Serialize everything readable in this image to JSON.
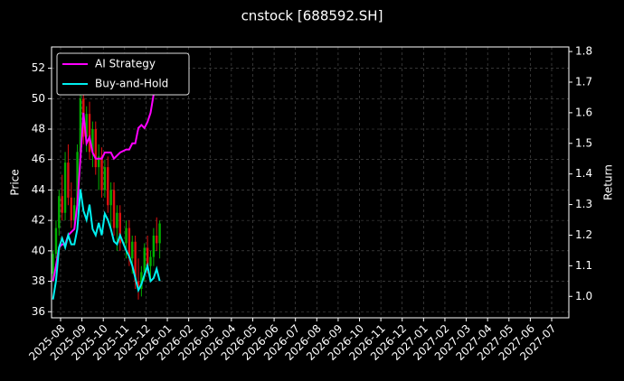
{
  "chart_data": {
    "type": "candlestick",
    "title": "cnstock [688592.SH]",
    "ylabel": "Price",
    "y2label": "Return",
    "x": [
      "2025-07",
      "2025-07",
      "2025-07",
      "2025-08",
      "2025-08",
      "2025-08",
      "2025-08",
      "2025-08",
      "2025-08",
      "2025-08",
      "2025-09",
      "2025-09",
      "2025-09",
      "2025-09",
      "2025-09",
      "2025-09",
      "2025-09",
      "2025-10",
      "2025-10",
      "2025-10",
      "2025-10",
      "2025-10",
      "2025-10",
      "2025-11",
      "2025-11",
      "2025-11",
      "2025-11",
      "2025-11",
      "2025-11",
      "2025-11",
      "2025-12",
      "2025-12",
      "2025-12",
      "2025-12",
      "2025-12"
    ],
    "open": [
      38.5,
      39.8,
      41.5,
      43.6,
      42.5,
      45.8,
      43.5,
      42,
      43,
      46.5,
      50,
      47.5,
      49,
      46.5,
      48,
      45.5,
      46.2,
      44,
      45.5,
      43,
      44,
      41.5,
      42.5,
      40.5,
      41.5,
      39.5,
      40.6,
      38,
      37.5,
      38.6,
      40.2,
      39,
      39.6,
      41,
      40.5
    ],
    "high": [
      40,
      42,
      44,
      45,
      46.5,
      47,
      44.5,
      43.5,
      47,
      51,
      51,
      49.5,
      49.8,
      48.5,
      48.5,
      47,
      46.8,
      46,
      46.2,
      44.5,
      44.5,
      43,
      43,
      42,
      42,
      41,
      41,
      39.5,
      39,
      40.5,
      41,
      40,
      41.5,
      42.2,
      42
    ],
    "low": [
      38,
      39.5,
      41,
      42,
      42,
      43,
      41.5,
      41.5,
      42.8,
      46,
      47,
      46.5,
      46,
      45.5,
      45,
      44,
      43.5,
      43.5,
      42.5,
      41.5,
      41,
      40,
      40,
      39.5,
      39,
      38.5,
      37.5,
      36.8,
      37,
      38,
      38.5,
      38,
      39,
      40,
      39.5
    ],
    "close": [
      39.8,
      41.5,
      43.6,
      42.5,
      45.8,
      43.5,
      42,
      43,
      46.5,
      50,
      47.5,
      49,
      46.5,
      48,
      45.5,
      46.2,
      44,
      45.5,
      43,
      44,
      41.5,
      42.5,
      40.5,
      41.5,
      39.5,
      40.6,
      38,
      37.5,
      38.6,
      40.2,
      39,
      39.6,
      41,
      40.5,
      41.8
    ],
    "up_color": "#00b000",
    "down_color": "#e01010",
    "series": [
      {
        "name": "AI Strategy",
        "color": "#ff00ff",
        "axis": "y2",
        "values": [
          1.05,
          1.1,
          1.16,
          1.17,
          1.17,
          1.2,
          1.21,
          1.22,
          1.3,
          1.45,
          1.6,
          1.5,
          1.52,
          1.47,
          1.45,
          1.45,
          1.45,
          1.47,
          1.47,
          1.47,
          1.45,
          1.46,
          1.47,
          1.48,
          1.48,
          1.5,
          1.5,
          1.55,
          1.56,
          1.55,
          1.57,
          1.6,
          1.66,
          1.7,
          1.75
        ]
      },
      {
        "name": "Buy-and-Hold",
        "color": "#00f0f0",
        "axis": "y2",
        "values": [
          0.99,
          1.05,
          1.16,
          1.19,
          1.16,
          1.2,
          1.17,
          1.17,
          1.22,
          1.35,
          1.28,
          1.25,
          1.3,
          1.22,
          1.2,
          1.24,
          1.2,
          1.27,
          1.25,
          1.22,
          1.18,
          1.17,
          1.2,
          1.15,
          1.13,
          1.1,
          1.06,
          1.02,
          1.04,
          1.07,
          1.1,
          1.05,
          1.06,
          1.09,
          1.05
        ]
      }
    ],
    "ylim": [
      35.6,
      53.4
    ],
    "yticks": [
      36,
      38,
      40,
      42,
      44,
      46,
      48,
      50,
      52
    ],
    "y2lim": [
      0.93,
      1.815
    ],
    "y2ticks": [
      {
        "value": 1,
        "label": "1.0"
      },
      1.1,
      1.2,
      1.3,
      1.4,
      1.5,
      1.6,
      1.7,
      1.8
    ],
    "xticks": [
      "2025-08",
      "2025-09",
      "2025-10",
      "2025-11",
      "2025-12",
      "2026-01",
      "2026-02",
      "2026-03",
      "2026-04",
      "2026-05",
      "2026-06",
      "2026-07",
      "2026-08",
      "2026-09",
      "2026-10",
      "2026-11",
      "2026-12",
      "2027-01",
      "2027-02",
      "2027-03",
      "2027-04",
      "2027-05",
      "2027-06",
      "2027-07"
    ],
    "grid": true,
    "legend": "upper left"
  }
}
